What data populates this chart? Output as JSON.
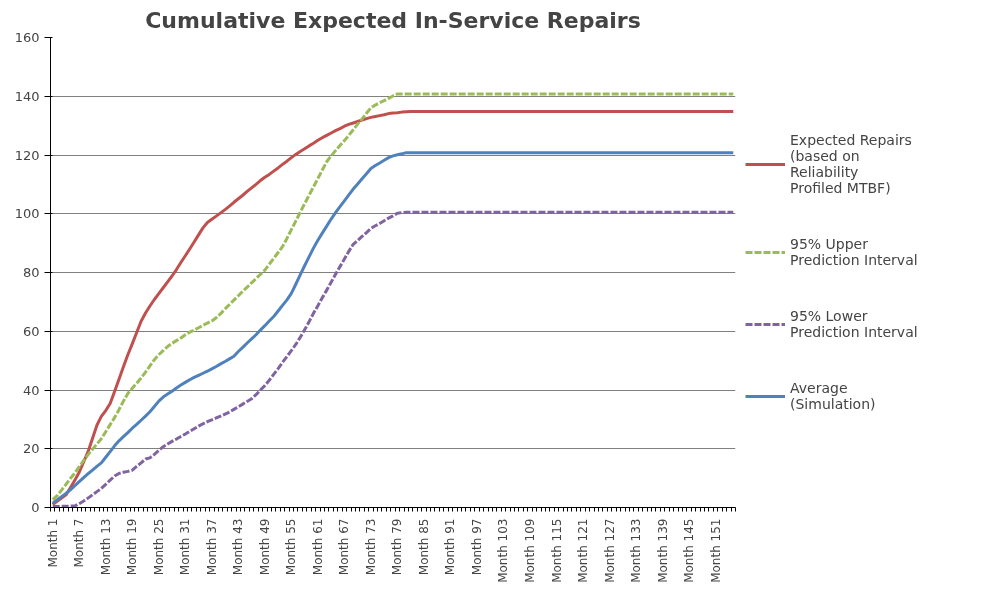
{
  "chart_data": {
    "type": "line",
    "title": "Cumulative Expected In-Service Repairs",
    "categories": [
      "Month 1",
      null,
      null,
      null,
      null,
      null,
      "Month 7",
      null,
      null,
      null,
      null,
      null,
      "Month 13",
      null,
      null,
      null,
      null,
      null,
      "Month 19",
      null,
      null,
      null,
      null,
      null,
      "Month 25",
      null,
      null,
      null,
      null,
      null,
      "Month 31",
      null,
      null,
      null,
      null,
      null,
      "Month 37",
      null,
      null,
      null,
      null,
      null,
      "Month 43",
      null,
      null,
      null,
      null,
      null,
      "Month 49",
      null,
      null,
      null,
      null,
      null,
      "Month 55",
      null,
      null,
      null,
      null,
      null,
      "Month 61",
      null,
      null,
      null,
      null,
      null,
      "Month 67",
      null,
      null,
      null,
      null,
      null,
      "Month 73",
      null,
      null,
      null,
      null,
      null,
      "Month 79",
      null,
      null,
      null,
      null,
      null,
      "Month 85",
      null,
      null,
      null,
      null,
      null,
      "Month 91",
      null,
      null,
      null,
      null,
      null,
      "Month 97",
      null,
      null,
      null,
      null,
      null,
      "Month 103",
      null,
      null,
      null,
      null,
      null,
      "Month 109",
      null,
      null,
      null,
      null,
      null,
      "Month 115",
      null,
      null,
      null,
      null,
      null,
      "Month 121",
      null,
      null,
      null,
      null,
      null,
      "Month 127",
      null,
      null,
      null,
      null,
      null,
      "Month 133",
      null,
      null,
      null,
      null,
      null,
      "Month 139",
      null,
      null,
      null,
      null,
      null,
      "Month 145",
      null,
      null,
      null,
      null,
      null,
      "Month 151",
      null,
      null,
      null,
      null
    ],
    "series": [
      {
        "name": "Expected Repairs (based on Reliability Profiled MTBF)",
        "color": "#c0504d",
        "line_style": "solid",
        "values": [
          1,
          2.1,
          3.2,
          4.3,
          6.7,
          9.3,
          12,
          15.5,
          19,
          23.5,
          28,
          31,
          33,
          35.4,
          39.5,
          43.7,
          47.9,
          52,
          55.7,
          59.6,
          63.4,
          66.2,
          68.6,
          70.8,
          72.8,
          74.8,
          76.8,
          78.8,
          81,
          83.4,
          85.7,
          88,
          90.4,
          92.8,
          95.2,
          97,
          98.1,
          99.2,
          100.3,
          101.4,
          102.6,
          103.9,
          105.1,
          106.3,
          107.6,
          108.8,
          110,
          111.3,
          112.4,
          113.4,
          114.5,
          115.6,
          116.8,
          117.9,
          119.1,
          120.2,
          121.2,
          122.1,
          123.1,
          124,
          125,
          125.9,
          126.7,
          127.5,
          128.3,
          129,
          129.8,
          130.4,
          130.9,
          131.4,
          131.9,
          132.4,
          132.8,
          133.1,
          133.4,
          133.7,
          134.1,
          134.3,
          134.4,
          134.6,
          134.7,
          134.8,
          134.8,
          134.8,
          134.8,
          134.8,
          134.8,
          134.8,
          134.8,
          134.8,
          134.8,
          134.8,
          134.8,
          134.8,
          134.8,
          134.8,
          134.8,
          134.8,
          134.8,
          134.8,
          134.8,
          134.8,
          134.8,
          134.8,
          134.8,
          134.8,
          134.8,
          134.8,
          134.8,
          134.8,
          134.8,
          134.8,
          134.8,
          134.8,
          134.8,
          134.8,
          134.8,
          134.8,
          134.8,
          134.8,
          134.8,
          134.8,
          134.8,
          134.8,
          134.8,
          134.8,
          134.8,
          134.8,
          134.8,
          134.8,
          134.8,
          134.8,
          134.8,
          134.8,
          134.8,
          134.8,
          134.8,
          134.8,
          134.8,
          134.8,
          134.8,
          134.8,
          134.8,
          134.8,
          134.8,
          134.8,
          134.8,
          134.8,
          134.8,
          134.8,
          134.8,
          134.8,
          134.8,
          134.8,
          134.8
        ]
      },
      {
        "name": "95% Upper Prediction Interval",
        "color": "#9bbb59",
        "line_style": "dashed",
        "values": [
          2.7,
          4,
          5.9,
          7.9,
          9.9,
          11.7,
          13.9,
          16,
          18,
          19.8,
          21.6,
          23.4,
          25.8,
          28.2,
          30.6,
          33.3,
          36.2,
          38.8,
          40.6,
          42.3,
          44.1,
          46.1,
          48.2,
          50.3,
          52,
          53.4,
          54.8,
          55.9,
          56.8,
          57.7,
          58.8,
          59.7,
          60.4,
          61.2,
          62,
          62.8,
          63.5,
          64.6,
          66,
          67.6,
          69.1,
          70.6,
          72.1,
          73.6,
          75,
          76.5,
          77.9,
          79.4,
          80.8,
          82.8,
          84.8,
          86.8,
          88.8,
          91.6,
          94.6,
          97.5,
          100.5,
          103.4,
          106.3,
          109.1,
          112,
          114.9,
          117.7,
          119.7,
          121.5,
          123.2,
          124.9,
          126.7,
          128.6,
          130.5,
          132.3,
          134.2,
          136.1,
          137,
          137.8,
          138.5,
          139.3,
          140.1,
          140.8,
          140.8,
          140.8,
          140.8,
          140.8,
          140.8,
          140.8,
          140.8,
          140.8,
          140.8,
          140.8,
          140.8,
          140.8,
          140.8,
          140.8,
          140.8,
          140.8,
          140.8,
          140.8,
          140.8,
          140.8,
          140.8,
          140.8,
          140.8,
          140.8,
          140.8,
          140.8,
          140.8,
          140.8,
          140.8,
          140.8,
          140.8,
          140.8,
          140.8,
          140.8,
          140.8,
          140.8,
          140.8,
          140.8,
          140.8,
          140.8,
          140.8,
          140.8,
          140.8,
          140.8,
          140.8,
          140.8,
          140.8,
          140.8,
          140.8,
          140.8,
          140.8,
          140.8,
          140.8,
          140.8,
          140.8,
          140.8,
          140.8,
          140.8,
          140.8,
          140.8,
          140.8,
          140.8,
          140.8,
          140.8,
          140.8,
          140.8,
          140.8,
          140.8,
          140.8,
          140.8,
          140.8,
          140.8,
          140.8,
          140.8,
          140.8,
          140.8
        ]
      },
      {
        "name": "95% Lower Prediction Interval",
        "color": "#8064a2",
        "line_style": "dashed",
        "values": [
          0.3,
          0.3,
          0.4,
          0.4,
          0.5,
          0.5,
          1.3,
          2.2,
          3.2,
          4.3,
          5.4,
          6.5,
          7.9,
          9.3,
          10.7,
          11.6,
          12,
          12.3,
          12.7,
          14,
          15.2,
          16.5,
          16.9,
          18.1,
          19.4,
          20.7,
          21.6,
          22.5,
          23.3,
          24.2,
          25,
          25.9,
          26.8,
          27.7,
          28.5,
          29.2,
          29.8,
          30.5,
          31.1,
          31.8,
          32.5,
          33.4,
          34.3,
          35.2,
          36.1,
          37,
          38.4,
          40,
          41.5,
          43.3,
          45.3,
          47.3,
          49.4,
          51.4,
          53.4,
          55.5,
          57.9,
          60.5,
          63.2,
          66.1,
          68.7,
          71.4,
          74,
          76.7,
          79.4,
          82,
          84.6,
          87.2,
          89.6,
          90.9,
          92.3,
          93.6,
          95,
          95.9,
          96.7,
          97.6,
          98.5,
          99.3,
          100.2,
          100.4,
          100.5,
          100.5,
          100.5,
          100.5,
          100.5,
          100.5,
          100.5,
          100.5,
          100.5,
          100.5,
          100.5,
          100.5,
          100.5,
          100.5,
          100.5,
          100.5,
          100.5,
          100.5,
          100.5,
          100.5,
          100.5,
          100.5,
          100.5,
          100.5,
          100.5,
          100.5,
          100.5,
          100.5,
          100.5,
          100.5,
          100.5,
          100.5,
          100.5,
          100.5,
          100.5,
          100.5,
          100.5,
          100.5,
          100.5,
          100.5,
          100.5,
          100.5,
          100.5,
          100.5,
          100.5,
          100.5,
          100.5,
          100.5,
          100.5,
          100.5,
          100.5,
          100.5,
          100.5,
          100.5,
          100.5,
          100.5,
          100.5,
          100.5,
          100.5,
          100.5,
          100.5,
          100.5,
          100.5,
          100.5,
          100.5,
          100.5,
          100.5,
          100.5,
          100.5,
          100.5,
          100.5,
          100.5,
          100.5,
          100.5,
          100.5
        ]
      },
      {
        "name": "Average (Simulation)",
        "color": "#4f81bd",
        "line_style": "solid",
        "values": [
          1.5,
          2.6,
          3.7,
          4.8,
          6,
          7.4,
          8.8,
          10.2,
          11.5,
          12.7,
          14,
          15.2,
          17.1,
          19,
          21,
          22.7,
          24.1,
          25.5,
          27,
          28.3,
          29.7,
          31.1,
          32.6,
          34.4,
          36.2,
          37.6,
          38.6,
          39.6,
          40.7,
          41.7,
          42.6,
          43.5,
          44.3,
          45,
          45.7,
          46.4,
          47.2,
          48,
          48.9,
          49.7,
          50.6,
          51.5,
          53.1,
          54.5,
          56,
          57.4,
          58.8,
          60.4,
          61.9,
          63.5,
          65,
          66.9,
          68.8,
          70.7,
          72.9,
          76,
          79.2,
          82.3,
          85.3,
          88.3,
          91,
          93.4,
          95.8,
          98.2,
          100.4,
          102.4,
          104.4,
          106.4,
          108.4,
          110.1,
          111.9,
          113.6,
          115.4,
          116.4,
          117.3,
          118.2,
          119.1,
          119.7,
          120.1,
          120.4,
          120.8,
          120.8,
          120.8,
          120.8,
          120.8,
          120.8,
          120.8,
          120.8,
          120.8,
          120.8,
          120.8,
          120.8,
          120.8,
          120.8,
          120.8,
          120.8,
          120.8,
          120.8,
          120.8,
          120.8,
          120.8,
          120.8,
          120.8,
          120.8,
          120.8,
          120.8,
          120.8,
          120.8,
          120.8,
          120.8,
          120.8,
          120.8,
          120.8,
          120.8,
          120.8,
          120.8,
          120.8,
          120.8,
          120.8,
          120.8,
          120.8,
          120.8,
          120.8,
          120.8,
          120.8,
          120.8,
          120.8,
          120.8,
          120.8,
          120.8,
          120.8,
          120.8,
          120.8,
          120.8,
          120.8,
          120.8,
          120.8,
          120.8,
          120.8,
          120.8,
          120.8,
          120.8,
          120.8,
          120.8,
          120.8,
          120.8,
          120.8,
          120.8,
          120.8,
          120.8,
          120.8,
          120.8,
          120.8,
          120.8,
          120.8
        ]
      }
    ],
    "ylim": [
      0,
      160
    ],
    "yticks": [
      0,
      20,
      40,
      60,
      80,
      100,
      120,
      140,
      160
    ],
    "grid": "y",
    "legend": "right",
    "marker": "none"
  }
}
